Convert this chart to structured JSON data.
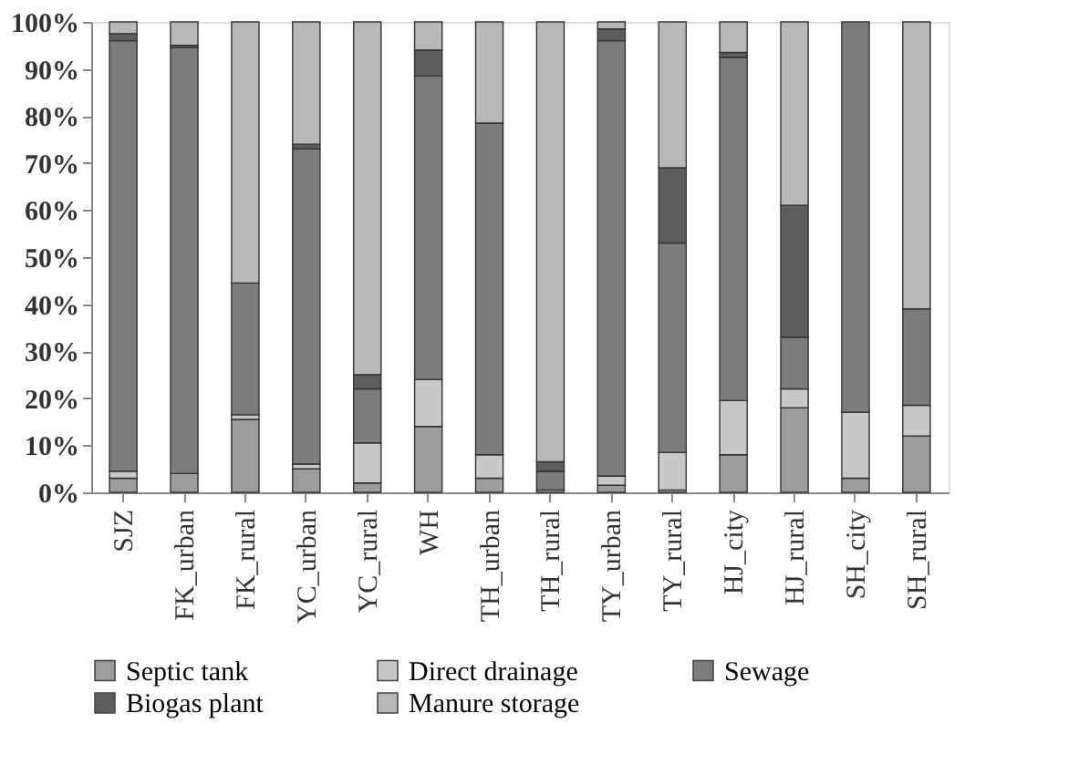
{
  "chart_data": {
    "type": "bar",
    "stacked": true,
    "categories": [
      "SJZ",
      "FK_urban",
      "FK_rural",
      "YC_urban",
      "YC_rural",
      "WH",
      "TH_urban",
      "TH_rural",
      "TY_urban",
      "TY_rural",
      "HJ_city",
      "HJ_rural",
      "SH_city",
      "SH_rural"
    ],
    "series": [
      {
        "name": "Septic tank",
        "color": "#9c9c9c",
        "values": [
          3,
          4,
          15.5,
          5,
          2,
          14,
          3,
          0.5,
          1.5,
          0.5,
          8,
          18,
          3,
          12
        ]
      },
      {
        "name": "Direct drainage",
        "color": "#c8c8c8",
        "values": [
          1.5,
          0,
          1,
          1,
          8.5,
          10,
          5,
          0,
          2,
          8,
          11.5,
          4,
          14,
          6.5
        ]
      },
      {
        "name": "Sewage",
        "color": "#7c7c7c",
        "values": [
          91.5,
          90.5,
          28,
          67,
          11.5,
          64.5,
          70.5,
          4,
          92.5,
          44.5,
          73,
          11,
          83,
          20.5
        ]
      },
      {
        "name": "Biogas plant",
        "color": "#5e5e5e",
        "values": [
          1.5,
          0.5,
          0,
          1,
          3,
          5.5,
          0,
          2,
          2.5,
          16,
          1,
          28,
          0,
          0
        ]
      },
      {
        "name": "Manure storage",
        "color": "#b8b8b8",
        "values": [
          2.5,
          5,
          55.5,
          26,
          75,
          6,
          21.5,
          93.5,
          1.5,
          31,
          6.5,
          39,
          0,
          61
        ]
      }
    ],
    "ylim": [
      0,
      100
    ],
    "yticks": [
      {
        "value": 0,
        "label": "0%"
      },
      {
        "value": 10,
        "label": "10%"
      },
      {
        "value": 20,
        "label": "20%"
      },
      {
        "value": 30,
        "label": "30%"
      },
      {
        "value": 40,
        "label": "40%"
      },
      {
        "value": 50,
        "label": "50%"
      },
      {
        "value": 60,
        "label": "60%"
      },
      {
        "value": 70,
        "label": "70%"
      },
      {
        "value": 80,
        "label": "80%"
      },
      {
        "value": 90,
        "label": "90%"
      },
      {
        "value": 100,
        "label": "100%"
      }
    ],
    "grid": false,
    "legend": "bottom"
  }
}
